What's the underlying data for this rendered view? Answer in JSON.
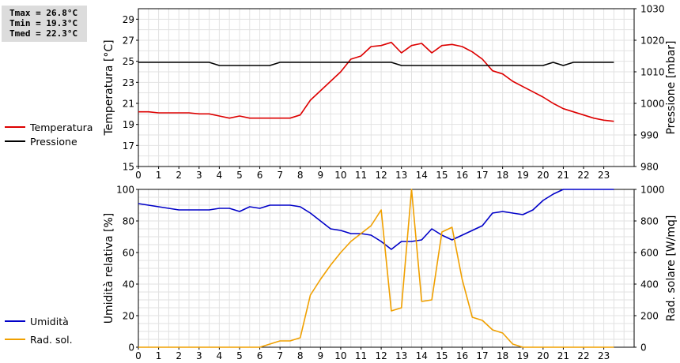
{
  "stats": {
    "tmax": "Tmax = 26.8°C",
    "tmin": "Tmin = 19.3°C",
    "tmed": "Tmed = 22.3°C"
  },
  "legend_top": [
    {
      "label": "Temperatura",
      "color": "#dd0000"
    },
    {
      "label": "Pressione",
      "color": "#000000"
    }
  ],
  "legend_bottom": [
    {
      "label": "Umidità",
      "color": "#0000c8"
    },
    {
      "label": "Rad. sol.",
      "color": "#f0a000"
    }
  ],
  "chart_data": [
    {
      "type": "line",
      "x_ticks": [
        "0",
        "1",
        "2",
        "3",
        "4",
        "5",
        "6",
        "7",
        "8",
        "9",
        "10",
        "11",
        "12",
        "13",
        "14",
        "15",
        "16",
        "17",
        "18",
        "19",
        "20",
        "21",
        "22",
        "23"
      ],
      "xlim": [
        0,
        24.5
      ],
      "ylabel": "Temperatura [°C]",
      "y2label": "Pressione [mbar]",
      "ylim": [
        15,
        30
      ],
      "y_ticks": [
        "15",
        "17",
        "19",
        "21",
        "23",
        "25",
        "27",
        "29"
      ],
      "y2lim": [
        980,
        1030
      ],
      "y2_ticks": [
        "980",
        "990",
        "1000",
        "1010",
        "1020",
        "1030"
      ],
      "grid": true,
      "series": [
        {
          "name": "Temperatura",
          "axis": "left",
          "color": "#dd0000",
          "x": [
            0,
            0.5,
            1,
            1.5,
            2,
            2.5,
            3,
            3.5,
            4,
            4.5,
            5,
            5.5,
            6,
            6.5,
            7,
            7.5,
            8,
            8.5,
            9,
            9.5,
            10,
            10.5,
            11,
            11.5,
            12,
            12.5,
            13,
            13.5,
            14,
            14.5,
            15,
            15.5,
            16,
            16.5,
            17,
            17.5,
            18,
            18.5,
            19,
            19.5,
            20,
            20.5,
            21,
            21.5,
            22,
            22.5,
            23,
            23.5
          ],
          "values": [
            20.2,
            20.2,
            20.1,
            20.1,
            20.1,
            20.1,
            20.0,
            20.0,
            19.8,
            19.6,
            19.8,
            19.6,
            19.6,
            19.6,
            19.6,
            19.6,
            19.9,
            21.3,
            22.2,
            23.1,
            24.0,
            25.2,
            25.5,
            26.4,
            26.5,
            26.8,
            25.8,
            26.5,
            26.7,
            25.8,
            26.5,
            26.6,
            26.4,
            25.9,
            25.2,
            24.1,
            23.8,
            23.1,
            22.6,
            22.1,
            21.6,
            21.0,
            20.5,
            20.2,
            19.9,
            19.6,
            19.4,
            19.3
          ]
        },
        {
          "name": "Pressione",
          "axis": "right",
          "color": "#000000",
          "x": [
            0,
            0.5,
            1,
            1.5,
            2,
            2.5,
            3,
            3.5,
            4,
            4.5,
            5,
            5.5,
            6,
            6.5,
            7,
            7.5,
            8,
            8.5,
            9,
            9.5,
            10,
            10.5,
            11,
            11.5,
            12,
            12.5,
            13,
            13.5,
            14,
            14.5,
            15,
            15.5,
            16,
            16.5,
            17,
            17.5,
            18,
            18.5,
            19,
            19.5,
            20,
            20.5,
            21,
            21.5,
            22,
            22.5,
            23,
            23.5
          ],
          "values": [
            1013,
            1013,
            1013,
            1013,
            1013,
            1013,
            1013,
            1013,
            1012,
            1012,
            1012,
            1012,
            1012,
            1012,
            1013,
            1013,
            1013,
            1013,
            1013,
            1013,
            1013,
            1013,
            1013,
            1013,
            1013,
            1013,
            1012,
            1012,
            1012,
            1012,
            1012,
            1012,
            1012,
            1012,
            1012,
            1012,
            1012,
            1012,
            1012,
            1012,
            1012,
            1013,
            1012,
            1013,
            1013,
            1013,
            1013,
            1013
          ]
        }
      ]
    },
    {
      "type": "line",
      "x_ticks": [
        "0",
        "1",
        "2",
        "3",
        "4",
        "5",
        "6",
        "7",
        "8",
        "9",
        "10",
        "11",
        "12",
        "13",
        "14",
        "15",
        "16",
        "17",
        "18",
        "19",
        "20",
        "21",
        "22",
        "23"
      ],
      "xlim": [
        0,
        24.5
      ],
      "ylabel": "Umidità relativa [%]",
      "y2label": "Rad. solare [W/mq]",
      "ylim": [
        0,
        100
      ],
      "y_ticks": [
        "0",
        "20",
        "40",
        "60",
        "80",
        "100"
      ],
      "y2lim": [
        0,
        1000
      ],
      "y2_ticks": [
        "0",
        "200",
        "400",
        "600",
        "800",
        "1000"
      ],
      "grid": true,
      "series": [
        {
          "name": "Umidità",
          "axis": "left",
          "color": "#0000c8",
          "x": [
            0,
            0.5,
            1,
            1.5,
            2,
            2.5,
            3,
            3.5,
            4,
            4.5,
            5,
            5.5,
            6,
            6.5,
            7,
            7.5,
            8,
            8.5,
            9,
            9.5,
            10,
            10.5,
            11,
            11.5,
            12,
            12.5,
            13,
            13.5,
            14,
            14.5,
            15,
            15.5,
            16,
            16.5,
            17,
            17.5,
            18,
            18.5,
            19,
            19.5,
            20,
            20.5,
            21,
            21.5,
            22,
            22.5,
            23,
            23.5
          ],
          "values": [
            91,
            90,
            89,
            88,
            87,
            87,
            87,
            87,
            88,
            88,
            86,
            89,
            88,
            90,
            90,
            90,
            89,
            85,
            80,
            75,
            74,
            72,
            72,
            71,
            67,
            62,
            67,
            67,
            68,
            75,
            71,
            68,
            71,
            74,
            77,
            85,
            86,
            85,
            84,
            87,
            93,
            97,
            100,
            100,
            100,
            100,
            100,
            100
          ]
        },
        {
          "name": "Rad. sol.",
          "axis": "right",
          "color": "#f0a000",
          "x": [
            0,
            0.5,
            1,
            1.5,
            2,
            2.5,
            3,
            3.5,
            4,
            4.5,
            5,
            5.5,
            6,
            6.5,
            7,
            7.5,
            8,
            8.5,
            9,
            9.5,
            10,
            10.5,
            11,
            11.5,
            12,
            12.5,
            13,
            13.5,
            14,
            14.5,
            15,
            15.5,
            16,
            16.5,
            17,
            17.5,
            18,
            18.5,
            19,
            19.5,
            20,
            20.5,
            21,
            21.5,
            22,
            22.5,
            23,
            23.5
          ],
          "values": [
            0,
            0,
            0,
            0,
            0,
            0,
            0,
            0,
            0,
            0,
            0,
            0,
            0,
            20,
            40,
            40,
            60,
            330,
            430,
            520,
            600,
            670,
            720,
            770,
            870,
            230,
            250,
            1000,
            290,
            300,
            730,
            760,
            430,
            190,
            170,
            110,
            90,
            20,
            0,
            0,
            0,
            0,
            0,
            0,
            0,
            0,
            0,
            0
          ]
        }
      ]
    }
  ]
}
